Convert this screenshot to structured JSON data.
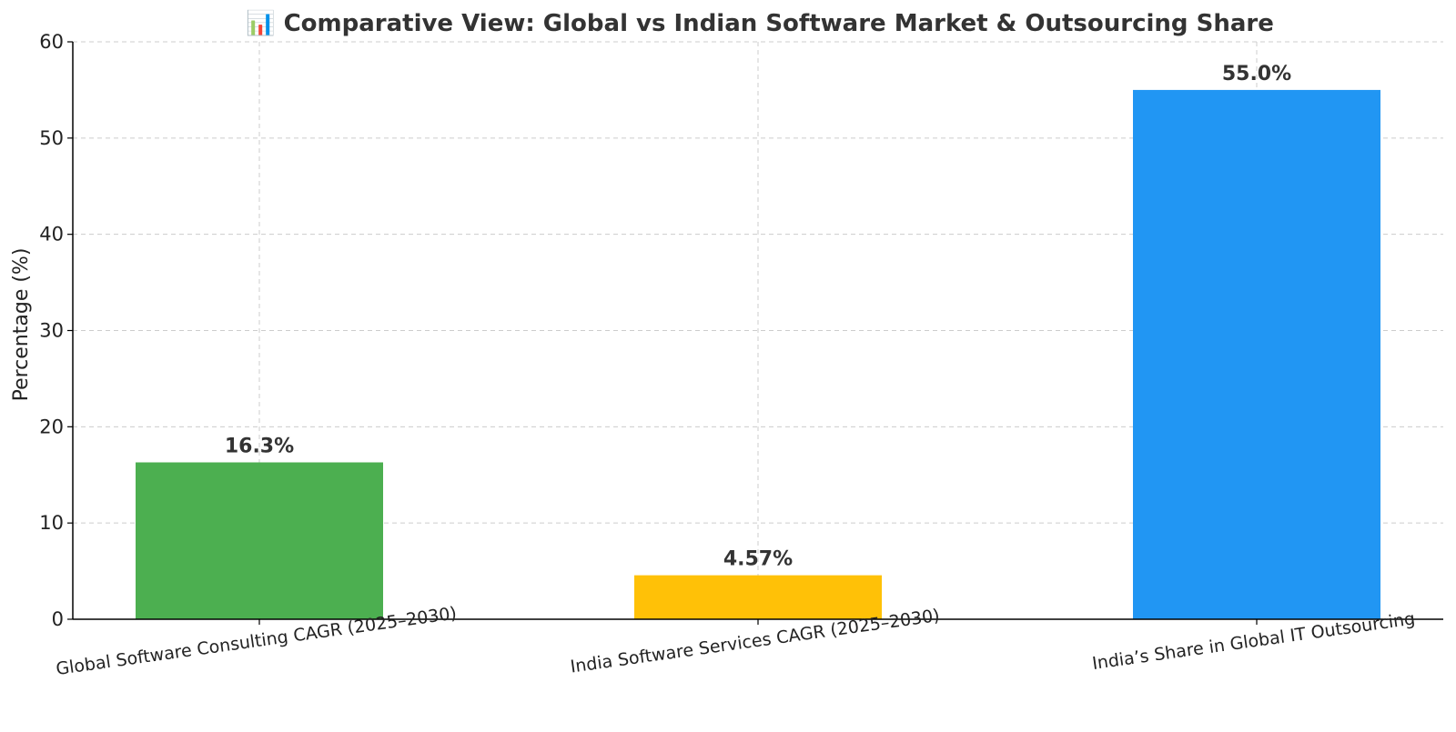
{
  "chart_data": {
    "type": "bar",
    "title": "📊 Comparative View: Global vs Indian Software Market & Outsourcing Share",
    "xlabel": "",
    "ylabel": "Percentage (%)",
    "ylim": [
      0,
      60
    ],
    "yticks": [
      0,
      10,
      20,
      30,
      40,
      50,
      60
    ],
    "grid": true,
    "categories": [
      "Global Software Consulting CAGR (2025–2030)",
      "India Software Services CAGR (2025–2030)",
      "India’s Share in Global IT Outsourcing"
    ],
    "values": [
      16.3,
      4.57,
      55.0
    ],
    "data_labels": [
      "16.3%",
      "4.57%",
      "55.0%"
    ],
    "colors": [
      "#4CAF50",
      "#FFC107",
      "#2196F3"
    ]
  }
}
